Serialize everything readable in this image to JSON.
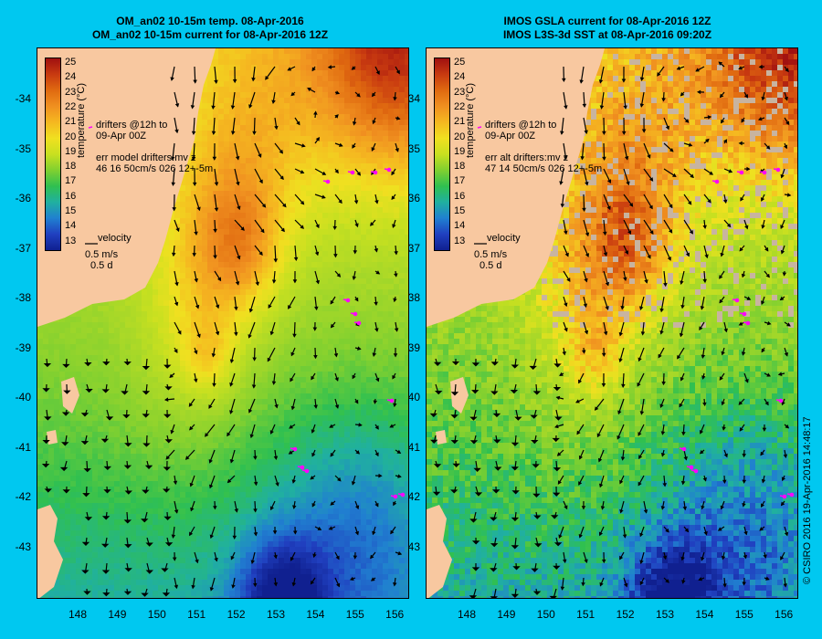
{
  "left_panel": {
    "title_line1": "OM_an02 10-15m temp. 08-Apr-2016",
    "title_line2": "OM_an02 10-15m current for 08-Apr-2016 12Z",
    "drifter_legend_line1": "drifters @12h to",
    "drifter_legend_line2": "09-Apr 00Z",
    "err_line1": "err model drifters:mv z",
    "err_line2": "46 16 50cm/s 026 12+-5m",
    "velocity_label": "velocity",
    "velocity_value": "0.5 m/s",
    "velocity_time": "0.5 d"
  },
  "right_panel": {
    "title_line1": "IMOS GSLA current for 08-Apr-2016 12Z",
    "title_line2": "IMOS L3S-3d SST at 08-Apr-2016 09:20Z",
    "drifter_legend_line1": "drifters @12h to",
    "drifter_legend_line2": "09-Apr 00Z",
    "err_line1": "err alt drifters:mv z",
    "err_line2": "47 14 50cm/s 026 12+-5m",
    "velocity_label": "velocity",
    "velocity_value": "0.5 m/s",
    "velocity_time": "0.5 d"
  },
  "colorbar": {
    "label": "temperature (°C)",
    "ticks": [
      "25",
      "24",
      "23",
      "22",
      "21",
      "20",
      "19",
      "18",
      "17",
      "16",
      "15",
      "14",
      "13"
    ],
    "colors": [
      "#a01010",
      "#c83a10",
      "#e06a10",
      "#f09020",
      "#f5b820",
      "#f0e020",
      "#c8e020",
      "#80d030",
      "#30c050",
      "#20b0a0",
      "#2080d0",
      "#2040c0",
      "#102090"
    ]
  },
  "axes": {
    "y_ticks": [
      "-34",
      "-35",
      "-36",
      "-37",
      "-38",
      "-39",
      "-40",
      "-41",
      "-42",
      "-43"
    ],
    "x_ticks": [
      "148",
      "149",
      "150",
      "151",
      "152",
      "153",
      "154",
      "155",
      "156"
    ]
  },
  "credit": "© CSIRO 2016   19-Apr-2016 14:48:17",
  "colors": {
    "background": "#00c8f0",
    "land": "#f8c8a0",
    "drifter": "#ff00ff",
    "cloud": "#c8b4a0"
  }
}
